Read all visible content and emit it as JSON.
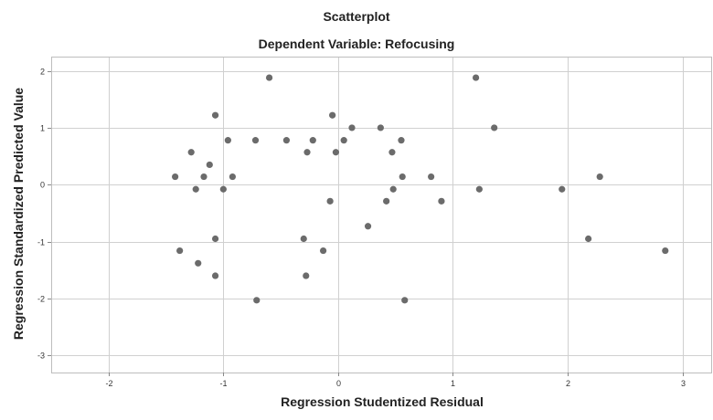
{
  "chart_data": {
    "type": "scatter",
    "title": "Scatterplot",
    "subtitle": "Dependent Variable: Refocusing",
    "xlabel": "Regression Studentized Residual",
    "ylabel": "Regression Standardized Predicted Value",
    "xlim": [
      -2.5,
      3.25
    ],
    "ylim": [
      -3.3,
      2.25
    ],
    "x_ticks": [
      -2,
      -1,
      0,
      1,
      2,
      3
    ],
    "y_ticks": [
      2,
      1,
      0,
      -1,
      -2,
      -3
    ],
    "x_tick_labels": [
      "-2",
      "-1",
      "0",
      "1",
      "2",
      "3"
    ],
    "y_tick_labels": [
      "2",
      "1",
      "0",
      "-1",
      "-2",
      "-3"
    ],
    "grid": true,
    "marker_color": "#6b6b6b",
    "points": [
      {
        "x": -0.6,
        "y": 1.88
      },
      {
        "x": 1.2,
        "y": 1.88
      },
      {
        "x": -1.07,
        "y": 1.22
      },
      {
        "x": -0.05,
        "y": 1.22
      },
      {
        "x": 0.12,
        "y": 1.0
      },
      {
        "x": 0.37,
        "y": 1.0
      },
      {
        "x": 1.36,
        "y": 1.0
      },
      {
        "x": -0.96,
        "y": 0.78
      },
      {
        "x": -0.72,
        "y": 0.78
      },
      {
        "x": -0.45,
        "y": 0.78
      },
      {
        "x": -0.22,
        "y": 0.78
      },
      {
        "x": 0.05,
        "y": 0.78
      },
      {
        "x": 0.55,
        "y": 0.78
      },
      {
        "x": -1.28,
        "y": 0.57
      },
      {
        "x": -0.27,
        "y": 0.57
      },
      {
        "x": -0.02,
        "y": 0.57
      },
      {
        "x": 0.47,
        "y": 0.57
      },
      {
        "x": -1.12,
        "y": 0.35
      },
      {
        "x": -1.42,
        "y": 0.14
      },
      {
        "x": -1.17,
        "y": 0.14
      },
      {
        "x": -0.92,
        "y": 0.14
      },
      {
        "x": 0.56,
        "y": 0.14
      },
      {
        "x": 0.81,
        "y": 0.14
      },
      {
        "x": 2.28,
        "y": 0.14
      },
      {
        "x": -1.24,
        "y": -0.08
      },
      {
        "x": -1.0,
        "y": -0.08
      },
      {
        "x": 0.48,
        "y": -0.08
      },
      {
        "x": 1.23,
        "y": -0.08
      },
      {
        "x": 1.95,
        "y": -0.08
      },
      {
        "x": -0.07,
        "y": -0.29
      },
      {
        "x": 0.42,
        "y": -0.29
      },
      {
        "x": 0.9,
        "y": -0.29
      },
      {
        "x": 0.26,
        "y": -0.73
      },
      {
        "x": -1.07,
        "y": -0.95
      },
      {
        "x": -0.3,
        "y": -0.95
      },
      {
        "x": 2.18,
        "y": -0.95
      },
      {
        "x": -1.38,
        "y": -1.16
      },
      {
        "x": -0.13,
        "y": -1.16
      },
      {
        "x": 2.85,
        "y": -1.16
      },
      {
        "x": -1.22,
        "y": -1.38
      },
      {
        "x": -1.07,
        "y": -1.6
      },
      {
        "x": -0.28,
        "y": -1.6
      },
      {
        "x": -0.71,
        "y": -2.03
      },
      {
        "x": 0.58,
        "y": -2.03
      }
    ]
  }
}
